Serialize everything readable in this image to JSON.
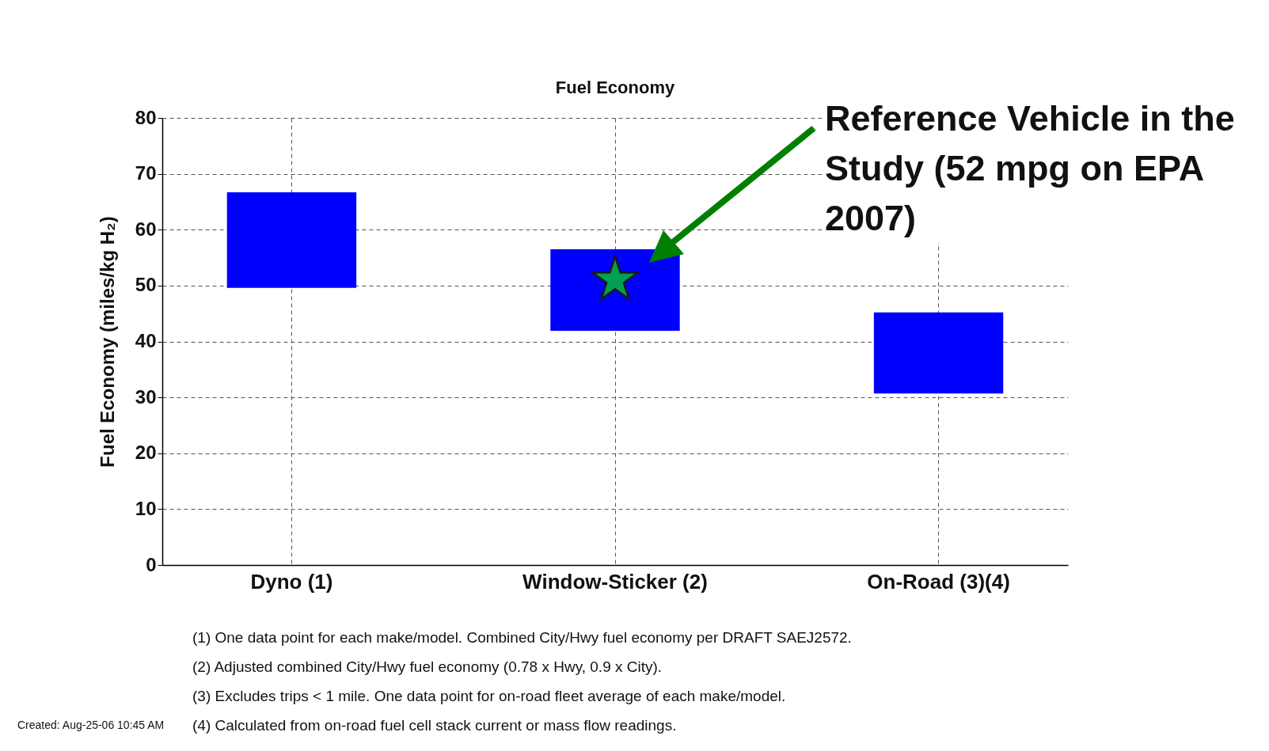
{
  "chart_data": {
    "type": "bar",
    "title": "Fuel Economy",
    "ylabel": "Fuel Economy (miles/kg H₂)",
    "categories": [
      "Dyno (1)",
      "Window-Sticker (2)",
      "On-Road (3)(4)"
    ],
    "ylim": [
      0,
      80
    ],
    "yticks": [
      0,
      10,
      20,
      30,
      40,
      50,
      60,
      70,
      80
    ],
    "grid": true,
    "marker": "star",
    "series": [
      {
        "color": "#0000ff",
        "base": [
          49.6,
          41.9,
          30.7
        ],
        "values": [
          17.1,
          14.6,
          14.5
        ]
      },
      {
        "type": "scatter",
        "color": "#00a050",
        "x": [
          "Window-Sticker (2)"
        ],
        "values": [
          51
        ]
      }
    ],
    "annotations": [
      "Reference Vehicle in the Study (52 mpg on EPA 2007)",
      "(1) One data point for each make/model. Combined City/Hwy fuel economy per DRAFT SAEJ2572.",
      "(2) Adjusted combined City/Hwy fuel economy (0.78 x Hwy, 0.9 x City).",
      "(3) Excludes trips < 1 mile. One data point for on-road fleet average of each make/model.",
      "(4) Calculated from on-road fuel cell stack current or mass flow readings.",
      "Created: Aug-25-06 10:45 AM"
    ]
  }
}
